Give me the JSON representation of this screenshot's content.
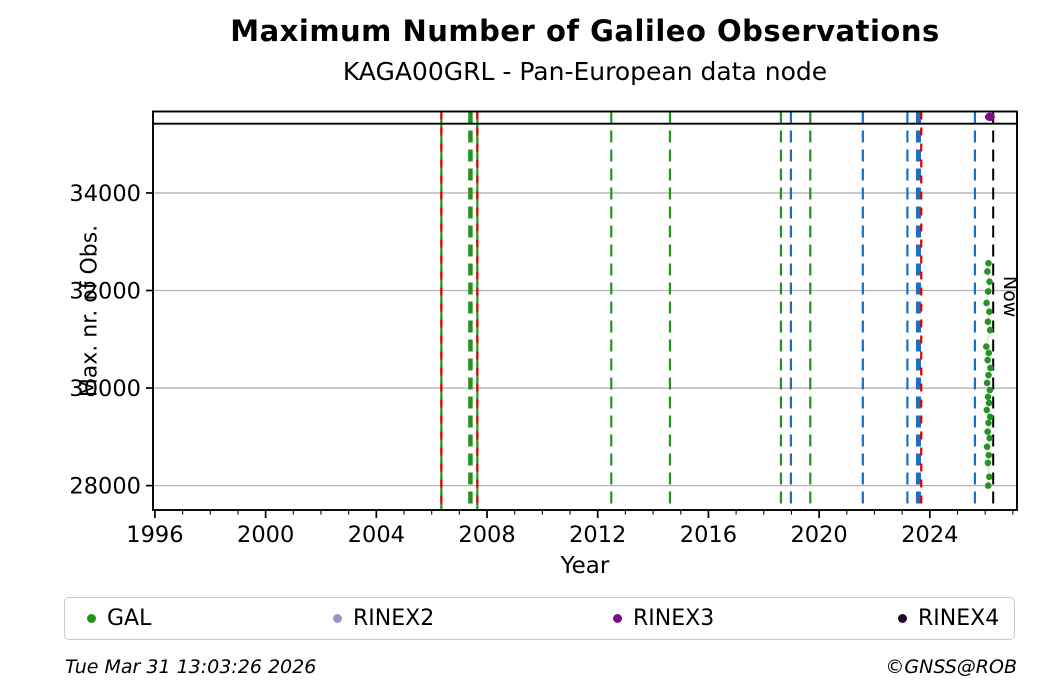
{
  "chart_data": {
    "type": "scatter",
    "title": "Maximum Number of Galileo Observations",
    "subtitle": "KAGA00GRL - Pan-European data node",
    "xlabel": "Year",
    "ylabel": "Max. nr. of Obs.",
    "xlim": [
      1995.93,
      2027.15
    ],
    "ylim": [
      27500,
      35670
    ],
    "xticks": [
      1996,
      2000,
      2004,
      2008,
      2012,
      2016,
      2020,
      2024
    ],
    "xtick_minor_step": 1,
    "yticks": [
      28000,
      30000,
      32000,
      34000
    ],
    "grid": "horizontal",
    "grid_color": "#b4b4b4",
    "frame_hline_value": 35420,
    "now_line": {
      "year": 2026.29,
      "label": "Now",
      "color": "#000000",
      "dash": "12 7",
      "width": 2
    },
    "event_lines": [
      {
        "year": 2006.35,
        "color": "#24941f",
        "width": 2.2,
        "dash": null
      },
      {
        "year": 2006.35,
        "color": "#e00000",
        "width": 2.2,
        "dash": "8 8"
      },
      {
        "year": 2007.4,
        "color": "#24941f",
        "width": 4.5,
        "dash": "12 7"
      },
      {
        "year": 2007.65,
        "color": "#24941f",
        "width": 2.2,
        "dash": null
      },
      {
        "year": 2007.65,
        "color": "#e00000",
        "width": 2.2,
        "dash": "8 8"
      },
      {
        "year": 2012.49,
        "color": "#24941f",
        "width": 2.2,
        "dash": "12 7"
      },
      {
        "year": 2014.61,
        "color": "#24941f",
        "width": 2.2,
        "dash": "12 7"
      },
      {
        "year": 2018.62,
        "color": "#24941f",
        "width": 2.2,
        "dash": "12 7"
      },
      {
        "year": 2018.98,
        "color": "#1a6fc4",
        "width": 2.2,
        "dash": "12 7"
      },
      {
        "year": 2019.68,
        "color": "#24941f",
        "width": 2.2,
        "dash": "12 7"
      },
      {
        "year": 2021.58,
        "color": "#1a6fc4",
        "width": 2.2,
        "dash": "12 7"
      },
      {
        "year": 2023.19,
        "color": "#1a6fc4",
        "width": 2.2,
        "dash": "12 7"
      },
      {
        "year": 2023.59,
        "color": "#1a6fc4",
        "width": 5.0,
        "dash": "12 7"
      },
      {
        "year": 2023.69,
        "color": "#e00000",
        "width": 2.2,
        "dash": "8 8"
      },
      {
        "year": 2025.63,
        "color": "#1a6fc4",
        "width": 2.2,
        "dash": "12 7"
      }
    ],
    "series": [
      {
        "name": "GAL",
        "color": "#24941f",
        "connector_color": "#c2e5c0",
        "marker_r": 3.3,
        "points": [
          [
            2026.12,
            32560
          ],
          [
            2026.08,
            32390
          ],
          [
            2026.16,
            32180
          ],
          [
            2026.11,
            31980
          ],
          [
            2026.05,
            31745
          ],
          [
            2026.15,
            31565
          ],
          [
            2026.1,
            31360
          ],
          [
            2026.18,
            31190
          ],
          [
            2026.04,
            30850
          ],
          [
            2026.13,
            30720
          ],
          [
            2026.09,
            30575
          ],
          [
            2026.19,
            30410
          ],
          [
            2026.12,
            30265
          ],
          [
            2026.07,
            30105
          ],
          [
            2026.17,
            29960
          ],
          [
            2026.1,
            29820
          ],
          [
            2026.14,
            29695
          ],
          [
            2026.06,
            29550
          ],
          [
            2026.18,
            29410
          ],
          [
            2026.12,
            29285
          ],
          [
            2026.09,
            29105
          ],
          [
            2026.16,
            28975
          ],
          [
            2026.07,
            28795
          ],
          [
            2026.13,
            28625
          ],
          [
            2026.1,
            28465
          ],
          [
            2026.15,
            28180
          ],
          [
            2026.11,
            28000
          ]
        ]
      },
      {
        "name": "RINEX3",
        "color": "#7b0d86",
        "marker_rx": 5,
        "marker_ry": 4.2,
        "points": [
          [
            2026.17,
            35560
          ]
        ]
      }
    ],
    "legend": {
      "items": [
        {
          "label": "GAL",
          "color": "#24941f"
        },
        {
          "label": "RINEX2",
          "color": "#9a93d1"
        },
        {
          "label": "RINEX3",
          "color": "#7b0d86"
        },
        {
          "label": "RINEX4",
          "color": "#26062e"
        }
      ]
    },
    "timestamp": "Tue Mar 31 13:03:26 2026",
    "credit": "©GNSS@ROB"
  }
}
